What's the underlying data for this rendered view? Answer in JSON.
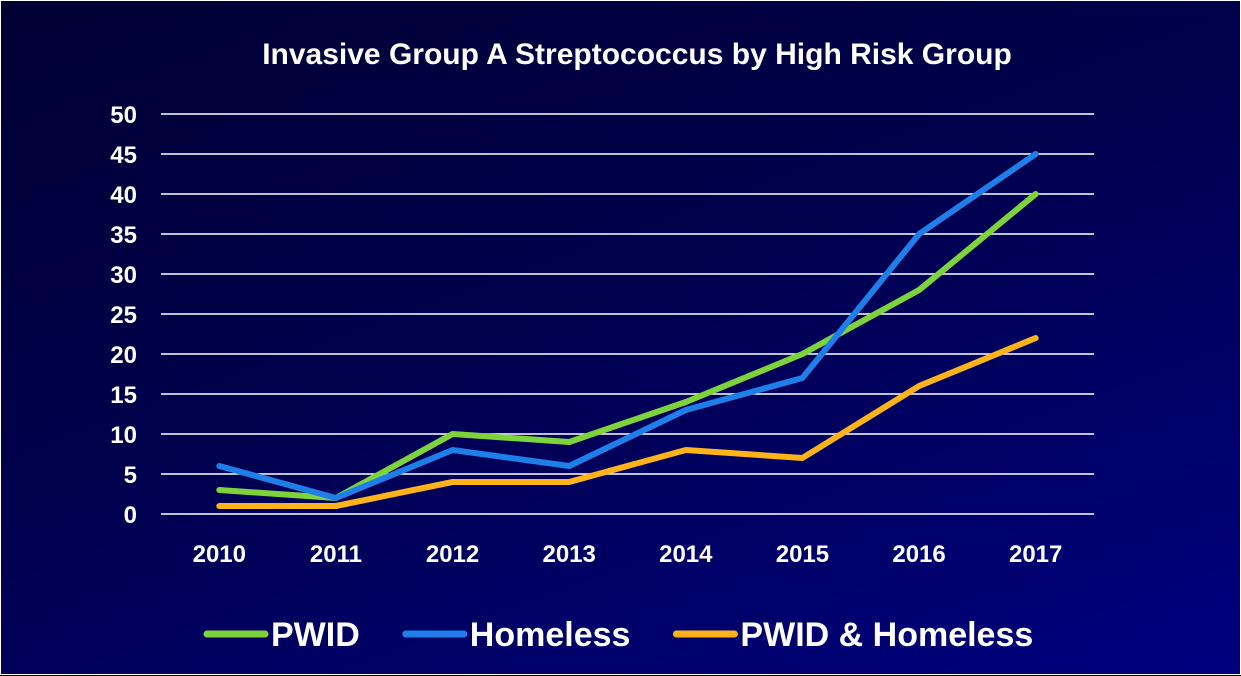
{
  "chart_data": {
    "type": "line",
    "title": "Invasive Group A Streptococcus by High Risk Group",
    "xlabel": "",
    "ylabel": "",
    "categories": [
      "2010",
      "2011",
      "2012",
      "2013",
      "2014",
      "2015",
      "2016",
      "2017"
    ],
    "ylim": [
      0,
      50
    ],
    "yticks": [
      0,
      5,
      10,
      15,
      20,
      25,
      30,
      35,
      40,
      45,
      50
    ],
    "grid": true,
    "legend_position": "bottom",
    "series": [
      {
        "name": "PWID",
        "color": "#7dd33c",
        "values": [
          3,
          2,
          10,
          9,
          14,
          20,
          28,
          40
        ]
      },
      {
        "name": "Homeless",
        "color": "#1e7fe8",
        "values": [
          6,
          2,
          8,
          6,
          13,
          17,
          35,
          45
        ]
      },
      {
        "name": "PWID & Homeless",
        "color": "#ffb31a",
        "values": [
          1,
          1,
          4,
          4,
          8,
          7,
          16,
          22
        ]
      }
    ]
  }
}
